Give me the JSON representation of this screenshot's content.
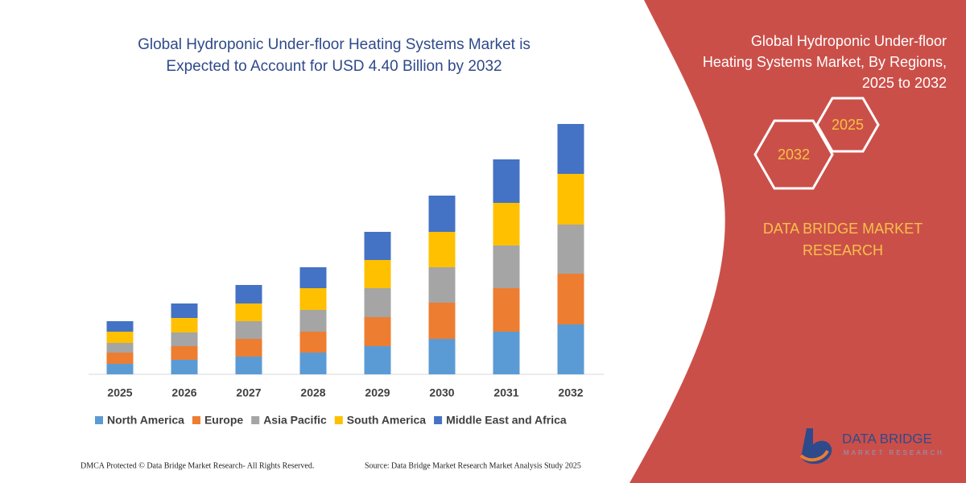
{
  "chart_data": {
    "type": "stacked-bar",
    "title": [
      "Global Hydroponic Under-floor Heating Systems Market is",
      "Expected to Account for USD 4.40 Billion by 2032"
    ],
    "categories": [
      "2025",
      "2026",
      "2027",
      "2028",
      "2029",
      "2030",
      "2031",
      "2032"
    ],
    "series": [
      {
        "name": "North America",
        "color": "#5b9bd5",
        "values": [
          13,
          18,
          22,
          27,
          35,
          44,
          53,
          62
        ]
      },
      {
        "name": "Europe",
        "color": "#ed7d31",
        "values": [
          14,
          17,
          22,
          26,
          36,
          45,
          54,
          63
        ]
      },
      {
        "name": "Asia Pacific",
        "color": "#a5a5a5",
        "values": [
          12,
          17,
          22,
          27,
          36,
          44,
          53,
          61
        ]
      },
      {
        "name": "South America",
        "color": "#ffc000",
        "values": [
          14,
          18,
          22,
          27,
          35,
          44,
          53,
          63
        ]
      },
      {
        "name": "Middle East and Africa",
        "color": "#4472c4",
        "values": [
          13,
          18,
          23,
          26,
          35,
          45,
          54,
          62
        ]
      }
    ]
  },
  "panel": {
    "title": [
      "Global Hydroponic Under-floor",
      "Heating Systems Market, By Regions,",
      "2025 to 2032"
    ],
    "hexagons": [
      "2032",
      "2025"
    ],
    "brand": [
      "DATA BRIDGE MARKET",
      "RESEARCH"
    ],
    "logo": [
      "DATA BRIDGE",
      "MARKET RESEARCH"
    ]
  },
  "footer": {
    "copyright": "DMCA Protected © Data Bridge Market Research-  All Rights Reserved.",
    "source": "Source: Data Bridge Market Research  Market Analysis Study 2025"
  }
}
